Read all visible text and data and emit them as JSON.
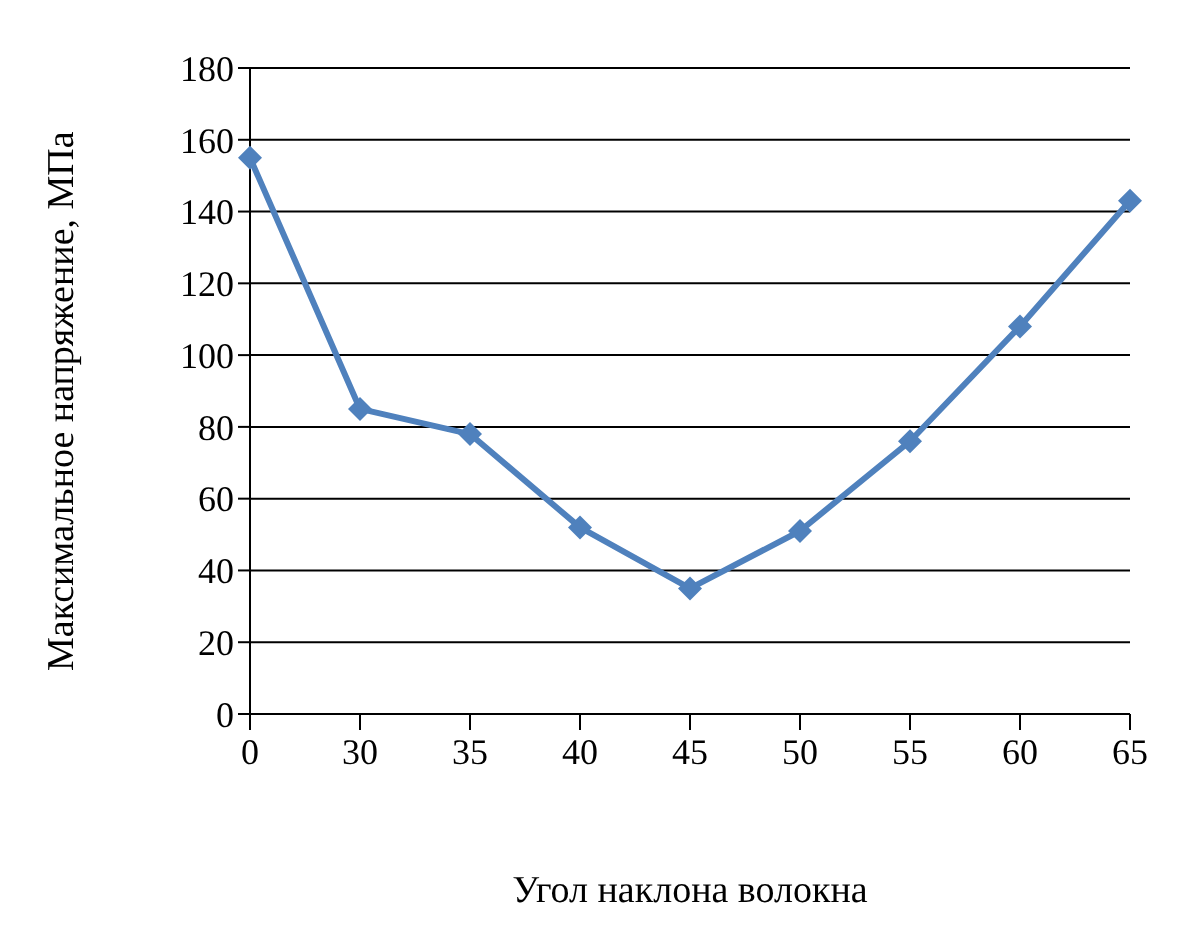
{
  "chart_data": {
    "type": "line",
    "xlabel": "Угол наклона волокна",
    "ylabel": "Максимальное напряжение, МПа",
    "categories": [
      "0",
      "30",
      "35",
      "40",
      "45",
      "50",
      "55",
      "60",
      "65"
    ],
    "series": [
      {
        "color": "#4f81bd",
        "values": [
          155,
          85,
          78,
          52,
          35,
          51,
          76,
          108,
          143
        ]
      }
    ],
    "ylim": [
      0,
      180
    ],
    "yticks": [
      0,
      20,
      40,
      60,
      80,
      100,
      120,
      140,
      160,
      180
    ],
    "grid": "y",
    "legend": false,
    "marker": "diamond",
    "line_style": "solid"
  }
}
